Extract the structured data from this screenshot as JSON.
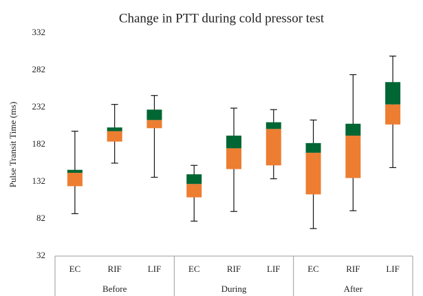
{
  "chart_data": {
    "type": "box",
    "title": "Change in PTT during cold pressor test",
    "y_label": "Pulse Transit Time (ms)",
    "groups": [
      "Before",
      "During",
      "After"
    ],
    "categories": [
      "EC",
      "RIF",
      "LIF",
      "EC",
      "RIF",
      "LIF",
      "EC",
      "RIF",
      "LIF"
    ],
    "min": [
      89,
      157,
      138,
      79,
      92,
      136,
      69,
      93,
      151
    ],
    "q1": [
      126,
      186,
      204,
      111,
      149,
      154,
      115,
      137,
      209
    ],
    "median": [
      144,
      200,
      215,
      129,
      177,
      203,
      171,
      194,
      236
    ],
    "q3": [
      148,
      205,
      229,
      142,
      194,
      212,
      184,
      210,
      266
    ],
    "max": [
      200,
      236,
      248,
      154,
      231,
      229,
      215,
      276,
      301
    ],
    "lower_color": "#ed7d31",
    "upper_color": "#006633",
    "ylim": [
      32,
      332
    ],
    "yticks": [
      32,
      82,
      132,
      182,
      232,
      282,
      332
    ]
  }
}
